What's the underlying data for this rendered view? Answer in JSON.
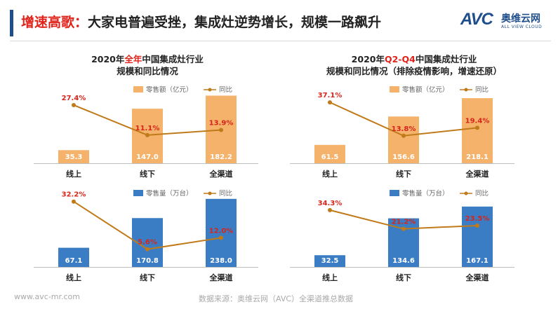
{
  "header": {
    "title_highlight": "增速高歌：",
    "title_rest": "大家电普遍受挫，集成灶逆势增长，规模一路飙升",
    "logo_avc": "AVC",
    "logo_cn": "奥维云网",
    "logo_en": "ALL VIEW CLOUD"
  },
  "colors": {
    "accent": "#1f4e8c",
    "highlight": "#e0231a",
    "bar_sales_amount": "#f5b26b",
    "bar_sales_volume": "#3a7dc4",
    "line": "#c07a1a",
    "line_label": "#d7251b"
  },
  "panels": {
    "left": {
      "title_prefix": "2020年",
      "title_red": "全年",
      "title_suffix": "中国集成灶行业",
      "title_line2": "规模和同比情况"
    },
    "right": {
      "title_prefix": "2020年",
      "title_red": "Q2-Q4",
      "title_suffix": "中国集成灶行业",
      "title_line2": "规模和同比情况（排除疫情影响，增速还原）"
    }
  },
  "chart_data": [
    {
      "type": "bar",
      "panel": "left-top",
      "categories": [
        "线上",
        "线下",
        "全渠道"
      ],
      "series": [
        {
          "name": "零售额（亿元）",
          "kind": "bar",
          "values": [
            35.3,
            147.0,
            182.2
          ],
          "labels": [
            "35.3",
            "147.0",
            "182.2"
          ]
        },
        {
          "name": "同比",
          "kind": "line",
          "values": [
            27.4,
            11.1,
            13.9
          ],
          "labels": [
            "27.4%",
            "11.1%",
            "13.9%"
          ]
        }
      ],
      "ylim": [
        0,
        185
      ],
      "ylim_line": [
        0,
        35
      ],
      "legend": "top-right"
    },
    {
      "type": "bar",
      "panel": "right-top",
      "categories": [
        "线上",
        "线下",
        "全渠道"
      ],
      "series": [
        {
          "name": "零售额（亿元）",
          "kind": "bar",
          "values": [
            61.5,
            156.6,
            218.1
          ],
          "labels": [
            "61.5",
            "156.6",
            "218.1"
          ]
        },
        {
          "name": "同比",
          "kind": "line",
          "values": [
            37.1,
            13.8,
            19.4
          ],
          "labels": [
            "37.1%",
            "13.8%",
            "19.4%"
          ]
        }
      ],
      "ylim": [
        0,
        230
      ],
      "ylim_line": [
        0,
        45
      ],
      "legend": "top-right"
    },
    {
      "type": "bar",
      "panel": "left-bottom",
      "categories": [
        "线上",
        "线下",
        "全渠道"
      ],
      "series": [
        {
          "name": "零售量（万台）",
          "kind": "bar",
          "values": [
            67.1,
            170.8,
            238.0
          ],
          "labels": [
            "67.1",
            "170.8",
            "238.0"
          ]
        },
        {
          "name": "同比",
          "kind": "line",
          "values": [
            32.2,
            5.6,
            12.0
          ],
          "labels": [
            "32.2%",
            "5.6%",
            "12.0%"
          ]
        }
      ],
      "ylim": [
        0,
        240
      ],
      "ylim_line": [
        0,
        36
      ],
      "legend": "top-right"
    },
    {
      "type": "bar",
      "panel": "right-bottom",
      "categories": [
        "线上",
        "线下",
        "全渠道"
      ],
      "series": [
        {
          "name": "零售量（万台）",
          "kind": "bar",
          "values": [
            32.5,
            134.6,
            167.1
          ],
          "labels": [
            "32.5",
            "134.6",
            "167.1"
          ]
        },
        {
          "name": "同比",
          "kind": "line",
          "values": [
            34.3,
            21.2,
            23.5
          ],
          "labels": [
            "34.3%",
            "21.2%",
            "23.5%"
          ]
        }
      ],
      "ylim": [
        0,
        190
      ],
      "ylim_line": [
        0,
        45
      ],
      "legend": "top-right"
    }
  ],
  "footer": {
    "website": "www.avc-mr.com",
    "source": "数据来源：奥维云网（AVC）全渠道推总数据"
  }
}
